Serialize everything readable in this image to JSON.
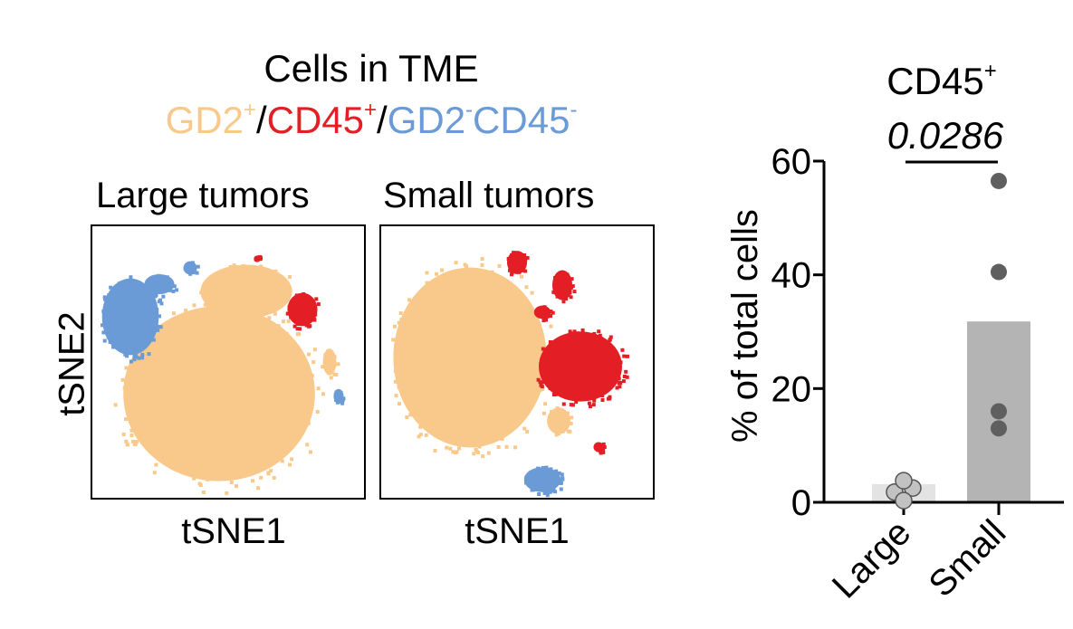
{
  "figure": {
    "title": "Cells in TME",
    "legend": [
      {
        "label": "GD2",
        "sup": "+",
        "color": "#f8c98b"
      },
      {
        "label": "/",
        "sup": "",
        "color": "#000000"
      },
      {
        "label": "CD45",
        "sup": "+",
        "color": "#e31e24"
      },
      {
        "label": "/",
        "sup": "",
        "color": "#000000"
      },
      {
        "label": "GD2",
        "sup": "-",
        "color": "#6b9bd6"
      },
      {
        "label": "CD45",
        "sup": "-",
        "color": "#6b9bd6"
      }
    ]
  },
  "tsne": {
    "panels": [
      {
        "title": "Large tumors",
        "xlabel": "tSNE1"
      },
      {
        "title": "Small tumors",
        "xlabel": "tSNE1"
      }
    ],
    "ylabel": "tSNE2",
    "colors": {
      "GD2_pos": "#f8c98b",
      "CD45_pos": "#e31e24",
      "double_neg": "#6b9bd6"
    }
  },
  "chart_data": {
    "type": "bar",
    "title": "CD45",
    "title_sup": "+",
    "ylabel": "% of total cells",
    "categories": [
      "Large",
      "Small"
    ],
    "values": [
      3.2,
      31.8
    ],
    "points": [
      [
        1.8,
        2.5,
        3.8,
        0.3
      ],
      [
        56.5,
        40.5,
        16.0,
        13.0
      ]
    ],
    "bar_colors": [
      "#e3e3e3",
      "#b4b4b4"
    ],
    "point_colors": [
      "#c2c2c2",
      "#5f5f5f"
    ],
    "yticks": [
      0,
      20,
      40,
      60
    ],
    "ylim": [
      0,
      60
    ],
    "significance": {
      "pvalue": "0.0286",
      "between": [
        "Large",
        "Small"
      ]
    }
  }
}
